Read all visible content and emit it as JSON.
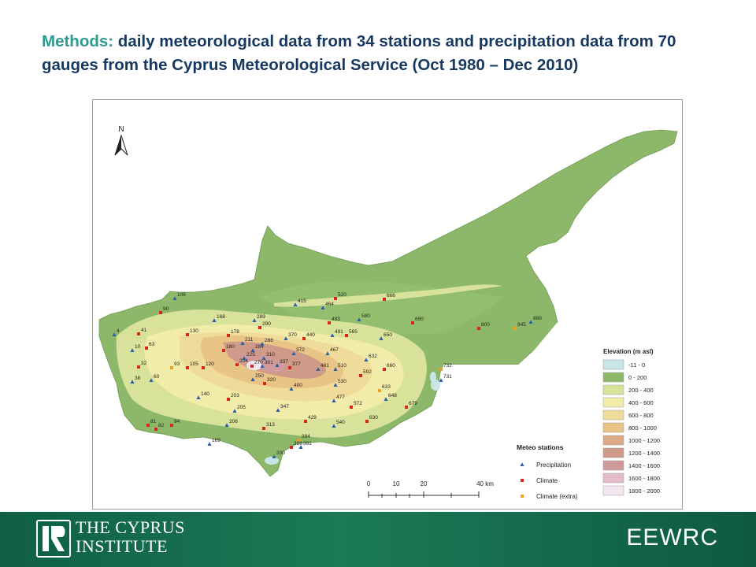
{
  "header": {
    "title_keyword": "Methods:",
    "title_rest": " daily meteorological data from 34 stations and precipitation data from 70 gauges from the Cyprus Meteorological Service (Oct 1980 – Dec 2010)"
  },
  "map": {
    "north_label": "N",
    "legend": {
      "elevation_title": "Elevation (m asl)",
      "elevation_classes": [
        {
          "label": "-11 - 0",
          "color": "#c9e6e6"
        },
        {
          "label": "0 - 200",
          "color": "#8db86a"
        },
        {
          "label": "200 - 400",
          "color": "#d9e29a"
        },
        {
          "label": "400 - 600",
          "color": "#f1ecaa"
        },
        {
          "label": "600 - 800",
          "color": "#f0dc9a"
        },
        {
          "label": "800 - 1000",
          "color": "#e9c487"
        },
        {
          "label": "1000 - 1200",
          "color": "#dcaa86"
        },
        {
          "label": "1200 - 1400",
          "color": "#d09a88"
        },
        {
          "label": "1400 - 1600",
          "color": "#cf9a99"
        },
        {
          "label": "1600 - 1800",
          "color": "#e4bccb"
        },
        {
          "label": "1800 - 2000",
          "color": "#f3e7f0"
        }
      ],
      "stations_title": "Meteo stations",
      "station_types": [
        {
          "label": "Precipitation",
          "color": "#2e5fa8",
          "shape": "triangle-icon"
        },
        {
          "label": "Climate",
          "color": "#d9251d",
          "shape": "square-icon"
        },
        {
          "label": "Climate (extra)",
          "color": "#f0a020",
          "shape": "square-icon"
        }
      ]
    },
    "scalebar": {
      "ticks": [
        "0",
        "10",
        "20",
        "40 km"
      ]
    },
    "stations": [
      {
        "id": "106",
        "type": "p"
      },
      {
        "id": "90",
        "type": "c"
      },
      {
        "id": "4",
        "type": "p"
      },
      {
        "id": "41",
        "type": "c"
      },
      {
        "id": "10",
        "type": "p"
      },
      {
        "id": "63",
        "type": "c"
      },
      {
        "id": "32",
        "type": "c"
      },
      {
        "id": "38",
        "type": "p"
      },
      {
        "id": "60",
        "type": "p"
      },
      {
        "id": "93",
        "type": "e"
      },
      {
        "id": "105",
        "type": "c"
      },
      {
        "id": "120",
        "type": "c"
      },
      {
        "id": "130",
        "type": "c"
      },
      {
        "id": "168",
        "type": "p"
      },
      {
        "id": "178",
        "type": "c"
      },
      {
        "id": "180",
        "type": "c"
      },
      {
        "id": "211",
        "type": "p"
      },
      {
        "id": "204",
        "type": "c"
      },
      {
        "id": "225",
        "type": "p"
      },
      {
        "id": "270",
        "type": "c"
      },
      {
        "id": "301",
        "type": "p"
      },
      {
        "id": "284",
        "type": "p"
      },
      {
        "id": "288",
        "type": "p"
      },
      {
        "id": "310",
        "type": "p"
      },
      {
        "id": "337",
        "type": "p"
      },
      {
        "id": "377",
        "type": "c"
      },
      {
        "id": "372",
        "type": "p"
      },
      {
        "id": "370",
        "type": "p"
      },
      {
        "id": "289",
        "type": "p"
      },
      {
        "id": "290",
        "type": "c"
      },
      {
        "id": "250",
        "type": "p"
      },
      {
        "id": "320",
        "type": "c"
      },
      {
        "id": "400",
        "type": "p"
      },
      {
        "id": "140",
        "type": "p"
      },
      {
        "id": "203",
        "type": "c"
      },
      {
        "id": "205",
        "type": "p"
      },
      {
        "id": "206",
        "type": "p"
      },
      {
        "id": "347",
        "type": "p"
      },
      {
        "id": "313",
        "type": "c"
      },
      {
        "id": "81",
        "type": "c"
      },
      {
        "id": "82",
        "type": "c"
      },
      {
        "id": "94",
        "type": "c"
      },
      {
        "id": "169",
        "type": "p"
      },
      {
        "id": "330",
        "type": "p"
      },
      {
        "id": "394",
        "type": "e"
      },
      {
        "id": "388",
        "type": "c"
      },
      {
        "id": "391",
        "type": "p"
      },
      {
        "id": "415",
        "type": "p"
      },
      {
        "id": "464",
        "type": "p"
      },
      {
        "id": "520",
        "type": "c"
      },
      {
        "id": "666",
        "type": "c"
      },
      {
        "id": "493",
        "type": "c"
      },
      {
        "id": "580",
        "type": "p"
      },
      {
        "id": "440",
        "type": "c"
      },
      {
        "id": "491",
        "type": "p"
      },
      {
        "id": "565",
        "type": "c"
      },
      {
        "id": "650",
        "type": "p"
      },
      {
        "id": "467",
        "type": "p"
      },
      {
        "id": "632",
        "type": "p"
      },
      {
        "id": "461",
        "type": "p"
      },
      {
        "id": "510",
        "type": "p"
      },
      {
        "id": "592",
        "type": "c"
      },
      {
        "id": "660",
        "type": "c"
      },
      {
        "id": "530",
        "type": "p"
      },
      {
        "id": "633",
        "type": "e"
      },
      {
        "id": "648",
        "type": "p"
      },
      {
        "id": "679",
        "type": "c"
      },
      {
        "id": "477",
        "type": "p"
      },
      {
        "id": "572",
        "type": "c"
      },
      {
        "id": "429",
        "type": "c"
      },
      {
        "id": "630",
        "type": "c"
      },
      {
        "id": "540",
        "type": "p"
      },
      {
        "id": "690",
        "type": "c"
      },
      {
        "id": "800",
        "type": "c"
      },
      {
        "id": "845",
        "type": "e"
      },
      {
        "id": "889",
        "type": "p"
      },
      {
        "id": "732",
        "type": "e"
      },
      {
        "id": "731",
        "type": "p"
      }
    ]
  },
  "footer": {
    "institute_line1": "THE CYPRUS",
    "institute_line2": "INSTITUTE",
    "center_acronym": "EEWRC"
  }
}
